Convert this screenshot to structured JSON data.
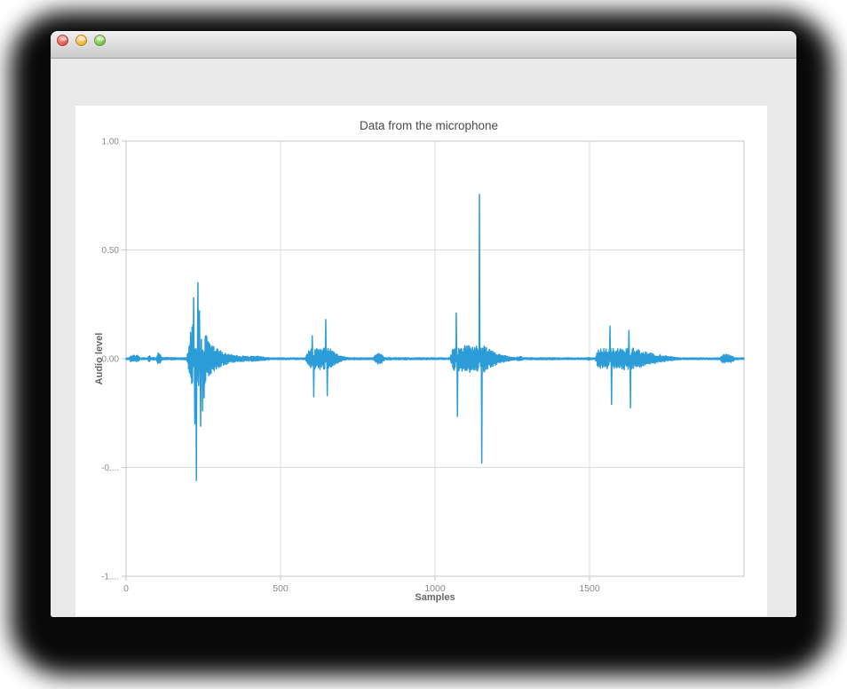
{
  "window": {
    "title": "",
    "buttons": [
      {
        "name": "close",
        "color": "#e5675c"
      },
      {
        "name": "minimize",
        "color": "#f2bb49"
      },
      {
        "name": "zoom",
        "color": "#86c958"
      }
    ]
  },
  "chart_data": {
    "type": "line",
    "title": "Data from the microphone",
    "xlabel": "Samples",
    "ylabel": "Audio level",
    "legend": null,
    "grid": true,
    "x_range": [
      0,
      2000
    ],
    "y_range": [
      -1,
      1
    ],
    "x_ticks": [
      {
        "v": 0,
        "label": "0"
      },
      {
        "v": 500,
        "label": "500"
      },
      {
        "v": 1000,
        "label": "1000"
      },
      {
        "v": 1500,
        "label": "1500"
      }
    ],
    "y_ticks": [
      {
        "v": 1,
        "label": "1.00"
      },
      {
        "v": 0.5,
        "label": "0.50"
      },
      {
        "v": 0,
        "label": "0.00"
      },
      {
        "v": -0.5,
        "label": "-0...."
      },
      {
        "v": -1,
        "label": "-1...."
      }
    ],
    "line_color": "#2b9cd8",
    "grid_color": "#dcdcdc",
    "border_color": "#c6c6c6",
    "tick_text_color": "#8a8a8a",
    "title_color": "#4a4a4a",
    "axis_label_color": "#666666",
    "series_name": "microphone-waveform",
    "noise_envelope_points": [
      [
        0,
        0.004
      ],
      [
        10,
        0.004
      ],
      [
        14,
        0.016
      ],
      [
        38,
        0.016
      ],
      [
        44,
        0.005
      ],
      [
        70,
        0.004
      ],
      [
        74,
        0.02
      ],
      [
        80,
        0.005
      ],
      [
        98,
        0.005
      ],
      [
        103,
        0.026
      ],
      [
        112,
        0.022
      ],
      [
        117,
        0.005
      ],
      [
        196,
        0.005
      ],
      [
        205,
        0.07
      ],
      [
        211,
        0.16
      ],
      [
        242,
        0.15
      ],
      [
        262,
        0.1
      ],
      [
        286,
        0.055
      ],
      [
        312,
        0.032
      ],
      [
        350,
        0.016
      ],
      [
        398,
        0.011
      ],
      [
        425,
        0.013
      ],
      [
        448,
        0.007
      ],
      [
        470,
        0.004
      ],
      [
        580,
        0.004
      ],
      [
        590,
        0.045
      ],
      [
        612,
        0.05
      ],
      [
        640,
        0.055
      ],
      [
        662,
        0.045
      ],
      [
        682,
        0.022
      ],
      [
        702,
        0.01
      ],
      [
        718,
        0.005
      ],
      [
        800,
        0.004
      ],
      [
        808,
        0.026
      ],
      [
        830,
        0.02
      ],
      [
        838,
        0.005
      ],
      [
        1048,
        0.004
      ],
      [
        1060,
        0.055
      ],
      [
        1090,
        0.06
      ],
      [
        1135,
        0.068
      ],
      [
        1162,
        0.06
      ],
      [
        1186,
        0.038
      ],
      [
        1212,
        0.02
      ],
      [
        1238,
        0.01
      ],
      [
        1262,
        0.005
      ],
      [
        1275,
        0.013
      ],
      [
        1284,
        0.005
      ],
      [
        1492,
        0.004
      ],
      [
        1498,
        0.008
      ],
      [
        1504,
        0.004
      ],
      [
        1518,
        0.004
      ],
      [
        1528,
        0.045
      ],
      [
        1556,
        0.05
      ],
      [
        1600,
        0.045
      ],
      [
        1622,
        0.055
      ],
      [
        1652,
        0.048
      ],
      [
        1676,
        0.034
      ],
      [
        1706,
        0.024
      ],
      [
        1742,
        0.014
      ],
      [
        1778,
        0.007
      ],
      [
        1798,
        0.004
      ],
      [
        1922,
        0.004
      ],
      [
        1930,
        0.02
      ],
      [
        1962,
        0.018
      ],
      [
        1970,
        0.004
      ],
      [
        2000,
        0.004
      ]
    ],
    "peak_spikes": [
      {
        "x": 219,
        "v": 0.28
      },
      {
        "x": 223,
        "v": -0.3
      },
      {
        "x": 227,
        "v": -0.56
      },
      {
        "x": 233,
        "v": 0.35
      },
      {
        "x": 238,
        "v": 0.22
      },
      {
        "x": 241,
        "v": -0.31
      },
      {
        "x": 247,
        "v": -0.24
      },
      {
        "x": 253,
        "v": -0.18
      },
      {
        "x": 603,
        "v": 0.105
      },
      {
        "x": 607,
        "v": -0.175
      },
      {
        "x": 646,
        "v": 0.18
      },
      {
        "x": 651,
        "v": -0.17
      },
      {
        "x": 1069,
        "v": 0.21
      },
      {
        "x": 1073,
        "v": -0.265
      },
      {
        "x": 1144,
        "v": 0.755
      },
      {
        "x": 1151,
        "v": -0.48
      },
      {
        "x": 1566,
        "v": 0.15
      },
      {
        "x": 1571,
        "v": -0.21
      },
      {
        "x": 1627,
        "v": 0.13
      },
      {
        "x": 1632,
        "v": -0.225
      }
    ]
  }
}
